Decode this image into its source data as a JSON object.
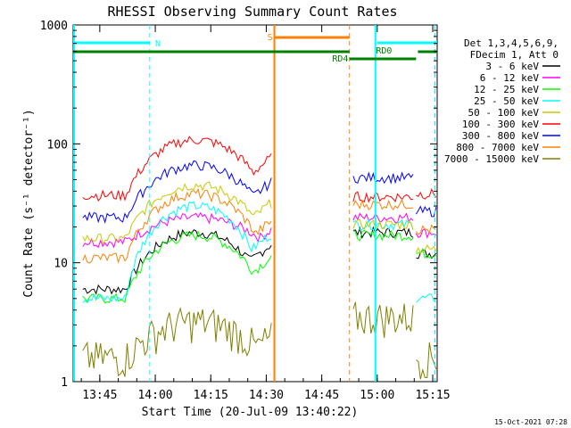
{
  "chart_data": {
    "type": "line",
    "title": "RHESSI Observing Summary Count Rates",
    "xlabel": "Start Time (20-Jul-09 13:40:22)",
    "ylabel": "Count Rate (s⁻¹ detector⁻¹)",
    "y_scale": "log",
    "ylim": [
      1,
      1000
    ],
    "xlim_minutes": [
      13.63,
      15.27
    ],
    "x_tick_labels": [
      "13:45",
      "14:00",
      "14:15",
      "14:30",
      "14:45",
      "15:00",
      "15:15"
    ],
    "y_tick_labels": [
      "1",
      "10",
      "100",
      "1000"
    ],
    "legend_header": [
      "Det 1,3,4,5,6,9,",
      "FDecim 1, Att 0"
    ],
    "series": [
      {
        "name": "3 - 6 keV",
        "color": "#000000"
      },
      {
        "name": "6 - 12 keV",
        "color": "#ff00ff"
      },
      {
        "name": "12 - 25 keV",
        "color": "#00ff00"
      },
      {
        "name": "25 - 50 keV",
        "color": "#00ffff"
      },
      {
        "name": "50 - 100 keV",
        "color": "#c8c800"
      },
      {
        "name": "100 - 300 keV",
        "color": "#ff0000"
      },
      {
        "name": "300 - 800 keV",
        "color": "#0000ff"
      },
      {
        "name": "800 - 7000 keV",
        "color": "#ff8000"
      },
      {
        "name": "7000 - 15000 keV",
        "color": "#808000"
      }
    ],
    "flags": [
      {
        "label": "N",
        "color": "#00ffff"
      },
      {
        "label": "S",
        "color": "#ff8000"
      },
      {
        "label": "RD4",
        "color": "#008000"
      },
      {
        "label": "RD0",
        "color": "#008000"
      }
    ],
    "timestamp": "15-Oct-2021 07:28"
  }
}
